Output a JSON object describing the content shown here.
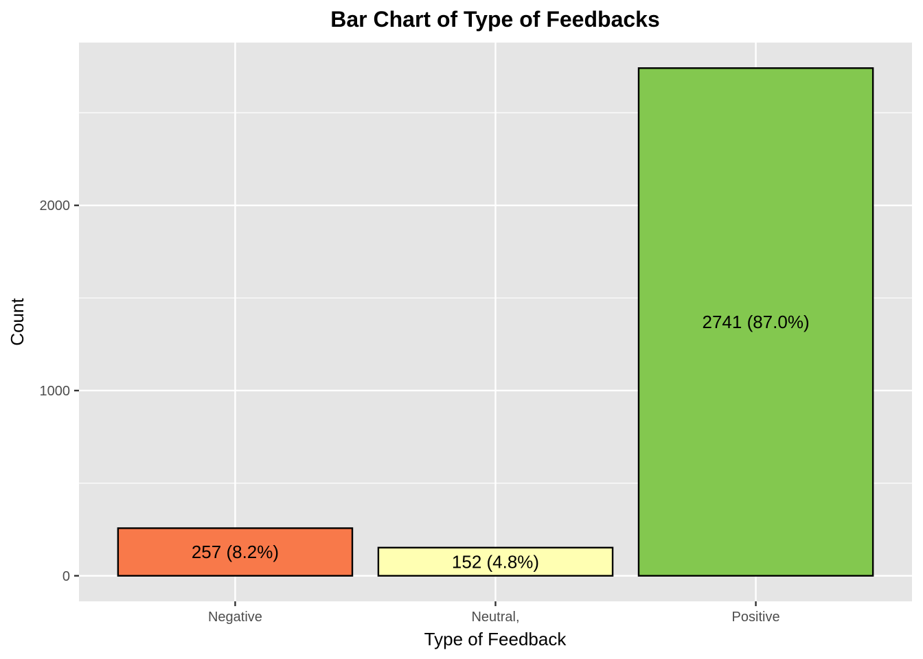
{
  "chart_data": {
    "type": "bar",
    "title": "Bar Chart of Type of Feedbacks",
    "xlabel": "Type of Feedback",
    "ylabel": "Count",
    "categories": [
      "Negative",
      "Neutral,",
      "Positive"
    ],
    "values": [
      257,
      152,
      2741
    ],
    "bar_labels": [
      "257 (8.2%)",
      "152 (4.8%)",
      "2741 (87.0%)"
    ],
    "colors": [
      "#f8794a",
      "#ffffb2",
      "#83c84f"
    ],
    "bar_outline_color": "#000000",
    "panel_background": "#e5e5e5",
    "gridline_color": "#ffffff",
    "ylim": [
      -138,
      2879
    ],
    "y_ticks": [
      0,
      1000,
      2000
    ],
    "y_tick_labels": [
      "0",
      "1000",
      "2000"
    ],
    "y_minor_ticks": [
      500,
      1500,
      2500
    ],
    "grid": true,
    "legend": "none"
  }
}
